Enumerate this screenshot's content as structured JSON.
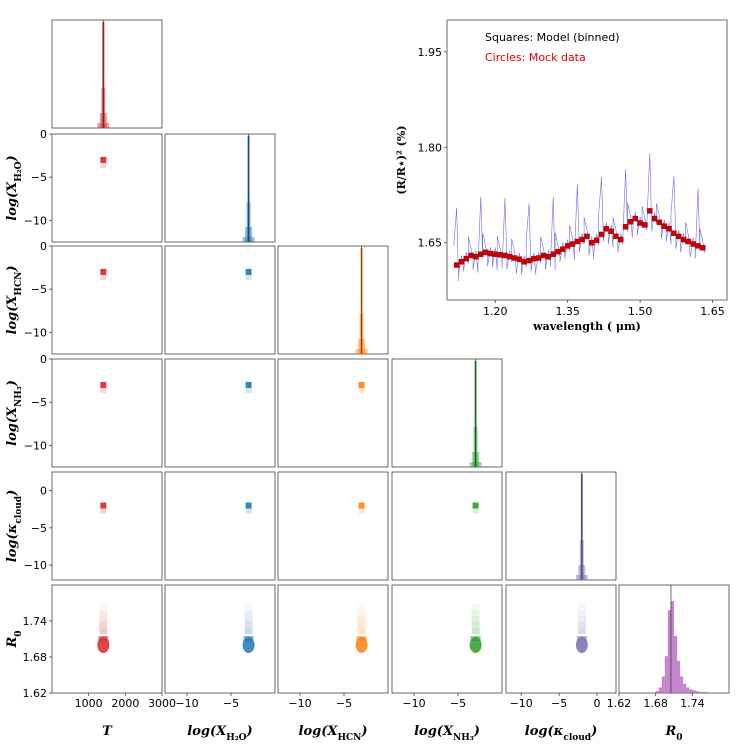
{
  "chart_data": [
    {
      "type": "corner",
      "parameters": [
        {
          "key": "T",
          "color": "#d62728",
          "range": [
            0,
            3000
          ],
          "ticks": [
            "1000",
            "2000",
            "3000"
          ],
          "peak": 1400
        },
        {
          "key": "H2O",
          "color": "#1f77b4",
          "range": [
            -12.5,
            0
          ],
          "ticks": [
            "−10",
            "−5"
          ],
          "peak": -3.0
        },
        {
          "key": "HCN",
          "color": "#ff7f0e",
          "range": [
            -12.5,
            0
          ],
          "ticks": [
            "−10",
            "−5"
          ],
          "peak": -3.0
        },
        {
          "key": "NH3",
          "color": "#2ca02c",
          "range": [
            -12.5,
            0
          ],
          "ticks": [
            "−10",
            "−5"
          ],
          "peak": -3.0
        },
        {
          "key": "kappa",
          "color": "#7570b3",
          "range": [
            -12,
            2.5
          ],
          "ticks": [
            "−10",
            "−5",
            "0"
          ],
          "peak": -2.0
        },
        {
          "key": "R0",
          "color": "#b15cbe",
          "range": [
            1.62,
            1.8
          ],
          "ticks": [
            "1.62",
            "1.68",
            "1.74"
          ],
          "peak": 1.705
        }
      ],
      "x_axis_labels": {
        "T": {
          "main": "T"
        },
        "H2O": {
          "main": "log(X",
          "sub": "H₂O",
          "end": ")"
        },
        "HCN": {
          "main": "log(X",
          "sub": "HCN",
          "end": ")"
        },
        "NH3": {
          "main": "log(X",
          "sub": "NH₃",
          "end": ")"
        },
        "kappa": {
          "main": "log(κ",
          "sub": "cloud",
          "end": ")"
        },
        "R0": {
          "main": "R",
          "sub": "0",
          "end": ""
        }
      },
      "y_axis_labels": {
        "H2O": {
          "main": "log(X",
          "sub": "H₂O",
          "end": ")"
        },
        "HCN": {
          "main": "log(X",
          "sub": "HCN",
          "end": ")"
        },
        "NH3": {
          "main": "log(X",
          "sub": "NH₃",
          "end": ")"
        },
        "kappa": {
          "main": "log(κ",
          "sub": "cloud",
          "end": ")"
        },
        "R0": {
          "main": "R",
          "sub": "0",
          "end": ""
        }
      },
      "y_ticks_log": [
        "0",
        "−5",
        "−10"
      ],
      "y_ticks_kappa": [
        "0",
        "−5",
        "−10"
      ],
      "y_ticks_R0": [
        "1.74",
        "1.68",
        "1.62"
      ],
      "R0_histogram": {
        "bins": [
          1.68,
          1.685,
          1.69,
          1.695,
          1.7,
          1.705,
          1.71,
          1.715,
          1.72,
          1.725,
          1.73,
          1.735,
          1.74,
          1.745,
          1.75,
          1.755,
          1.76
        ],
        "counts": [
          2,
          6,
          18,
          40,
          90,
          100,
          62,
          35,
          18,
          10,
          6,
          4,
          3,
          2,
          1,
          1,
          1
        ]
      }
    },
    {
      "type": "scatter",
      "xlabel": "wavelength ( μm)",
      "ylabel": "(R/R⋆)² (%)",
      "xlim": [
        1.1,
        1.68
      ],
      "ylim": [
        1.56,
        2.0
      ],
      "x_ticks": [
        "1.20",
        "1.35",
        "1.50",
        "1.65"
      ],
      "y_ticks": [
        "1.65",
        "1.80",
        "1.95"
      ],
      "legend": [
        "Squares: Model (binned)",
        "Circles: Mock data"
      ],
      "legend_colors": [
        "#000000",
        "#e00000"
      ],
      "model_color": "#4040e0",
      "binned_color": "#cc0000",
      "binned_x": [
        1.12,
        1.13,
        1.14,
        1.15,
        1.16,
        1.17,
        1.18,
        1.19,
        1.2,
        1.21,
        1.22,
        1.23,
        1.24,
        1.25,
        1.26,
        1.27,
        1.28,
        1.29,
        1.3,
        1.31,
        1.32,
        1.33,
        1.34,
        1.35,
        1.36,
        1.37,
        1.38,
        1.39,
        1.4,
        1.41,
        1.42,
        1.43,
        1.44,
        1.45,
        1.46,
        1.47,
        1.48,
        1.49,
        1.5,
        1.51,
        1.52,
        1.53,
        1.54,
        1.55,
        1.56,
        1.57,
        1.58,
        1.59,
        1.6,
        1.61,
        1.62,
        1.63
      ],
      "binned_y": [
        1.615,
        1.62,
        1.625,
        1.63,
        1.628,
        1.632,
        1.635,
        1.633,
        1.632,
        1.631,
        1.63,
        1.628,
        1.626,
        1.624,
        1.62,
        1.622,
        1.625,
        1.626,
        1.63,
        1.628,
        1.632,
        1.636,
        1.64,
        1.645,
        1.648,
        1.652,
        1.655,
        1.66,
        1.65,
        1.654,
        1.663,
        1.672,
        1.668,
        1.66,
        1.655,
        1.675,
        1.683,
        1.688,
        1.681,
        1.678,
        1.7,
        1.688,
        1.682,
        1.676,
        1.672,
        1.665,
        1.66,
        1.655,
        1.652,
        1.648,
        1.645,
        1.642
      ]
    }
  ]
}
